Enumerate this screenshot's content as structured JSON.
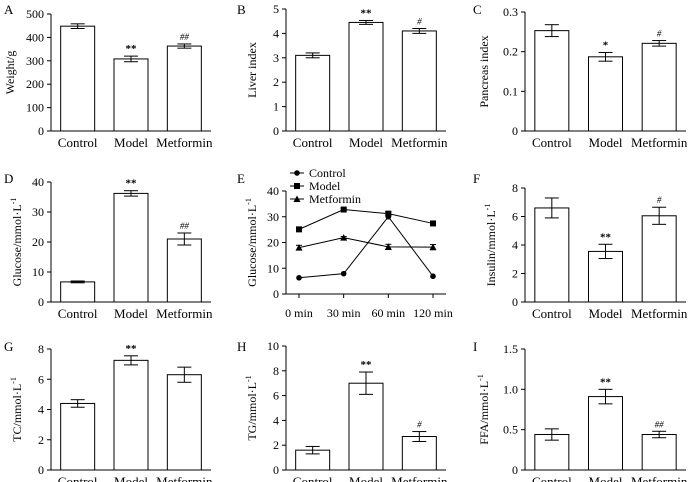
{
  "figure": {
    "panel_count": 9,
    "ink_color": "#000000",
    "bar_fill": "#ffffff"
  },
  "chart_data": [
    {
      "panel": "A",
      "type": "bar",
      "ylabel": "Weight/g",
      "ylabel_super": "",
      "ylim": [
        0,
        500
      ],
      "yticks": [
        0,
        100,
        200,
        300,
        400,
        500
      ],
      "ytick_labels": [
        "0",
        "100",
        "200",
        "300",
        "400",
        "500"
      ],
      "categories": [
        "Control",
        "Model",
        "Metformin"
      ],
      "values": [
        448,
        308,
        363
      ],
      "errors": [
        10,
        12,
        9
      ],
      "annotations": [
        "",
        "**",
        "##"
      ]
    },
    {
      "panel": "B",
      "type": "bar",
      "ylabel": "Liver index",
      "ylabel_super": "",
      "ylim": [
        0,
        5
      ],
      "yticks": [
        0,
        1,
        2,
        3,
        4,
        5
      ],
      "ytick_labels": [
        "0",
        "1",
        "2",
        "3",
        "4",
        "5"
      ],
      "categories": [
        "Control",
        "Model",
        "Metformin"
      ],
      "values": [
        3.1,
        4.45,
        4.1
      ],
      "errors": [
        0.1,
        0.08,
        0.1
      ],
      "annotations": [
        "",
        "**",
        "#"
      ]
    },
    {
      "panel": "C",
      "type": "bar",
      "ylabel": "Pancreas index",
      "ylabel_super": "",
      "ylim": [
        0,
        0.3
      ],
      "yticks": [
        0,
        0.1,
        0.2,
        0.3
      ],
      "ytick_labels": [
        "0",
        "0.1",
        "0.2",
        "0.3"
      ],
      "categories": [
        "Control",
        "Model",
        "Metformin"
      ],
      "values": [
        0.253,
        0.187,
        0.221
      ],
      "errors": [
        0.015,
        0.011,
        0.007
      ],
      "annotations": [
        "",
        "*",
        "#"
      ]
    },
    {
      "panel": "D",
      "type": "bar",
      "ylabel": "Glucose/mmol·L",
      "ylabel_super": "-1",
      "ylim": [
        0,
        40
      ],
      "yticks": [
        0,
        10,
        20,
        30,
        40
      ],
      "ytick_labels": [
        "0",
        "10",
        "20",
        "30",
        "40"
      ],
      "categories": [
        "Control",
        "Model",
        "Metformin"
      ],
      "values": [
        6.7,
        36.2,
        21.0
      ],
      "errors": [
        0.3,
        0.9,
        2.0
      ],
      "annotations": [
        "",
        "**",
        "##"
      ]
    },
    {
      "panel": "E",
      "type": "line",
      "ylabel": "Glucose/mmol·L",
      "ylabel_super": "-1",
      "ylim": [
        0,
        40
      ],
      "yticks": [
        0,
        10,
        20,
        30,
        40
      ],
      "ytick_labels": [
        "0",
        "10",
        "20",
        "30",
        "40"
      ],
      "x": [
        "0 min",
        "30 min",
        "60 min",
        "120 min"
      ],
      "series": [
        {
          "name": "Control",
          "marker": "circle",
          "values": [
            6.3,
            7.9,
            30.0,
            6.9
          ],
          "errors": [
            0,
            0,
            0,
            0
          ]
        },
        {
          "name": "Model",
          "marker": "square",
          "values": [
            25.1,
            32.8,
            31.2,
            27.4
          ],
          "errors": [
            0.6,
            0.5,
            0.8,
            0.7
          ]
        },
        {
          "name": "Metformin",
          "marker": "triangle",
          "values": [
            18.0,
            21.9,
            18.3,
            18.2
          ],
          "errors": [
            0.9,
            0.4,
            1.0,
            1.0
          ]
        }
      ],
      "legend": "top-left"
    },
    {
      "panel": "F",
      "type": "bar",
      "ylabel": "Insulin/mmol·L",
      "ylabel_super": "-1",
      "ylim": [
        0,
        8
      ],
      "yticks": [
        0,
        2,
        4,
        6,
        8
      ],
      "ytick_labels": [
        "0",
        "2",
        "4",
        "6",
        "8"
      ],
      "categories": [
        "Control",
        "Model",
        "Metformin"
      ],
      "values": [
        6.6,
        3.55,
        6.05
      ],
      "errors": [
        0.7,
        0.5,
        0.6
      ],
      "annotations": [
        "",
        "**",
        "#"
      ]
    },
    {
      "panel": "G",
      "type": "bar",
      "ylabel": "TC/mmol·L",
      "ylabel_super": "-1",
      "ylim": [
        0,
        8
      ],
      "yticks": [
        0,
        2,
        4,
        6,
        8
      ],
      "ytick_labels": [
        "0",
        "2",
        "4",
        "6",
        "8"
      ],
      "categories": [
        "Control",
        "Model",
        "Metformin"
      ],
      "values": [
        4.4,
        7.25,
        6.3
      ],
      "errors": [
        0.25,
        0.3,
        0.5
      ],
      "annotations": [
        "",
        "**",
        ""
      ]
    },
    {
      "panel": "H",
      "type": "bar",
      "ylabel": "TG/mmol·L",
      "ylabel_super": "-1",
      "ylim": [
        0,
        10
      ],
      "yticks": [
        0,
        2,
        4,
        6,
        8,
        10
      ],
      "ytick_labels": [
        "0",
        "2",
        "4",
        "6",
        "8",
        "10"
      ],
      "categories": [
        "Control",
        "Model",
        "Metformin"
      ],
      "values": [
        1.6,
        7.0,
        2.7
      ],
      "errors": [
        0.3,
        0.9,
        0.4
      ],
      "annotations": [
        "",
        "**",
        "#"
      ]
    },
    {
      "panel": "I",
      "type": "bar",
      "ylabel": "FFA/mmol·L",
      "ylabel_super": "-1",
      "ylim": [
        0,
        1.5
      ],
      "yticks": [
        0,
        0.5,
        1.0,
        1.5
      ],
      "ytick_labels": [
        "0",
        "0.5",
        "1.0",
        "1.5"
      ],
      "categories": [
        "Control",
        "Model",
        "Metformin"
      ],
      "values": [
        0.44,
        0.91,
        0.44
      ],
      "errors": [
        0.07,
        0.09,
        0.04
      ],
      "annotations": [
        "",
        "**",
        "##"
      ]
    }
  ]
}
